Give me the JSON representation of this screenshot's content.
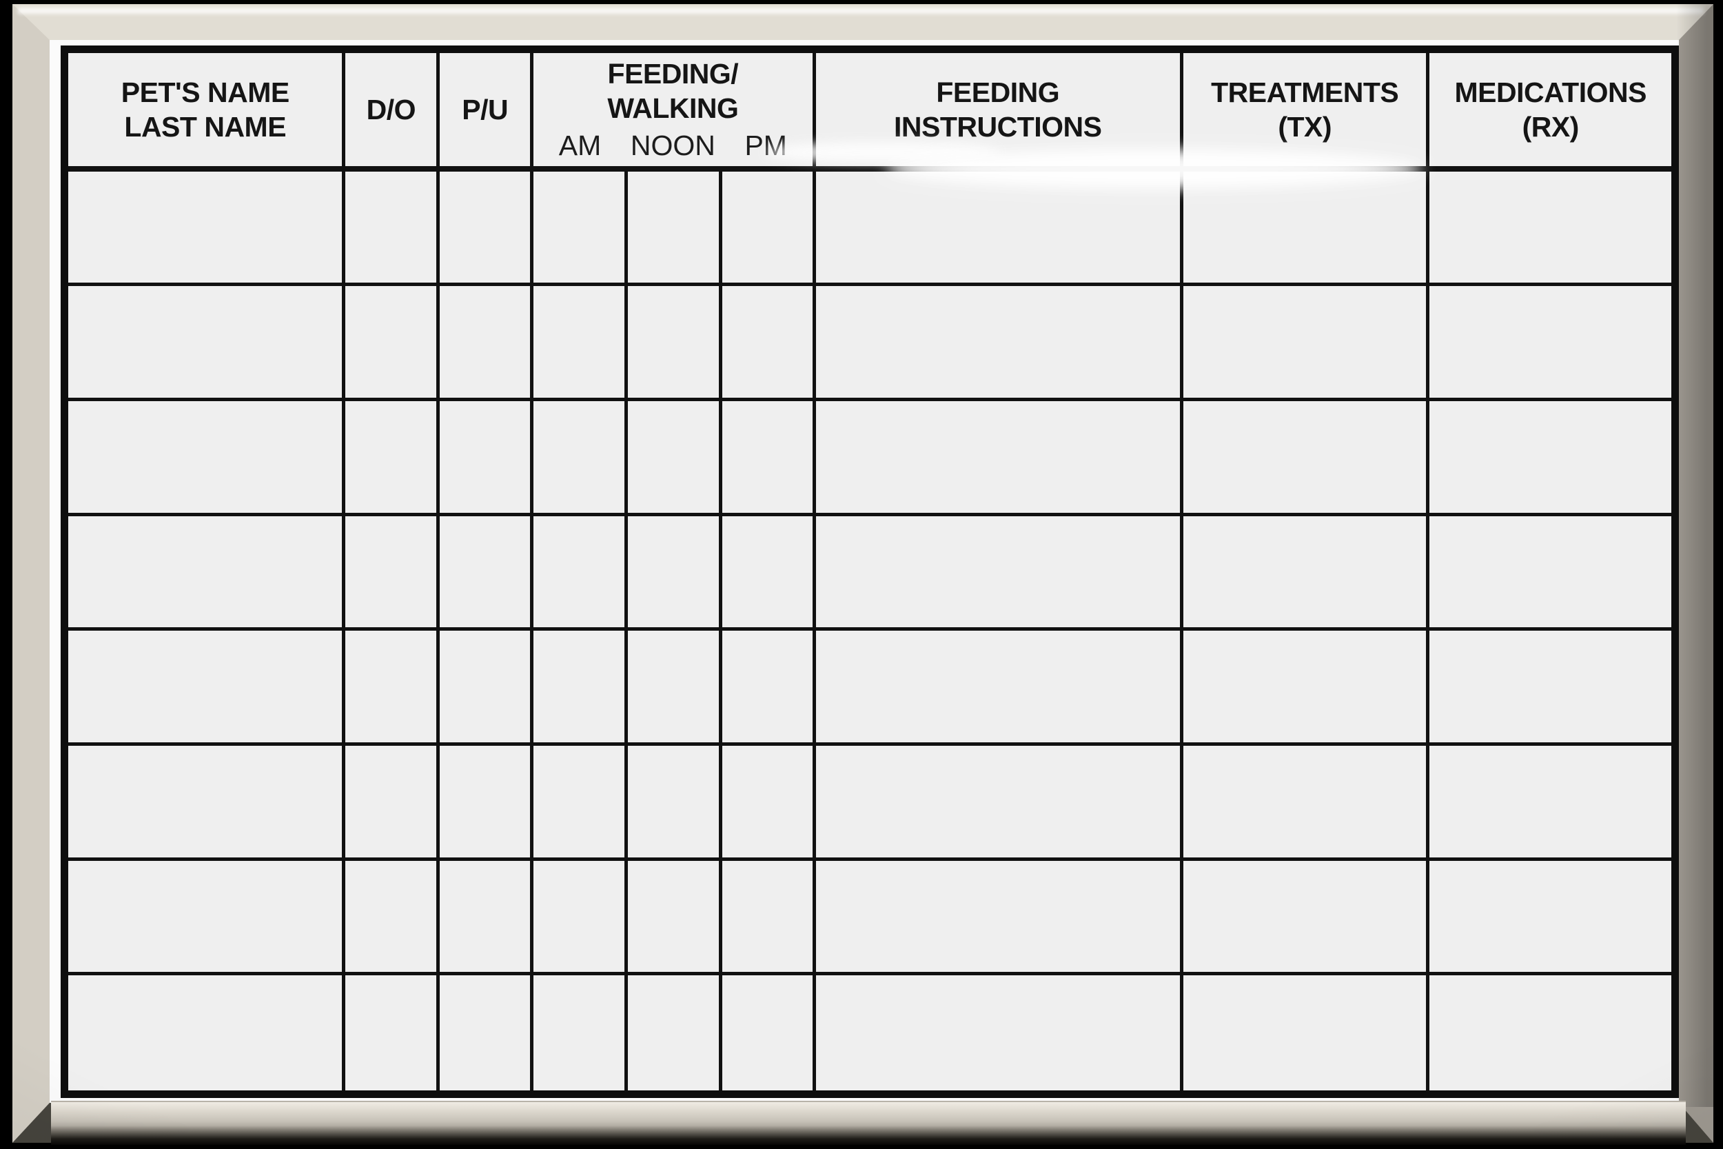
{
  "table": {
    "columns": [
      {
        "id": "pets-name",
        "lines": [
          "PET'S NAME",
          "LAST NAME"
        ]
      },
      {
        "id": "drop-off",
        "lines": [
          "D/O"
        ]
      },
      {
        "id": "pick-up",
        "lines": [
          "P/U"
        ]
      },
      {
        "id": "feeding-walking",
        "lines": [
          "FEEDING/",
          "WALKING"
        ],
        "sub": [
          "AM",
          "NOON",
          "PM"
        ]
      },
      {
        "id": "feeding-instructions",
        "lines": [
          "FEEDING",
          "INSTRUCTIONS"
        ]
      },
      {
        "id": "treatments",
        "lines": [
          "TREATMENTS",
          "(TX)"
        ]
      },
      {
        "id": "medications",
        "lines": [
          "MEDICATIONS",
          "(RX)"
        ]
      }
    ],
    "body_column_ids": [
      "pets-name",
      "drop-off",
      "pick-up",
      "feeding-am",
      "feeding-noon",
      "feeding-pm",
      "feeding-instructions",
      "treatments",
      "medications"
    ],
    "rows": [
      [
        "",
        "",
        "",
        "",
        "",
        "",
        "",
        "",
        ""
      ],
      [
        "",
        "",
        "",
        "",
        "",
        "",
        "",
        "",
        ""
      ],
      [
        "",
        "",
        "",
        "",
        "",
        "",
        "",
        "",
        ""
      ],
      [
        "",
        "",
        "",
        "",
        "",
        "",
        "",
        "",
        ""
      ],
      [
        "",
        "",
        "",
        "",
        "",
        "",
        "",
        "",
        ""
      ],
      [
        "",
        "",
        "",
        "",
        "",
        "",
        "",
        "",
        ""
      ],
      [
        "",
        "",
        "",
        "",
        "",
        "",
        "",
        "",
        ""
      ],
      [
        "",
        "",
        "",
        "",
        "",
        "",
        "",
        "",
        ""
      ]
    ]
  },
  "colors": {
    "background": "#000000",
    "board_surface": "#efefef",
    "board_margin": "#fbfbfb",
    "grid_line": "#111111",
    "frame_top": "#e1ddd3",
    "frame_left": "#d3cec4",
    "frame_right": "#9d9890",
    "tray_face": "#d5d0c6"
  }
}
